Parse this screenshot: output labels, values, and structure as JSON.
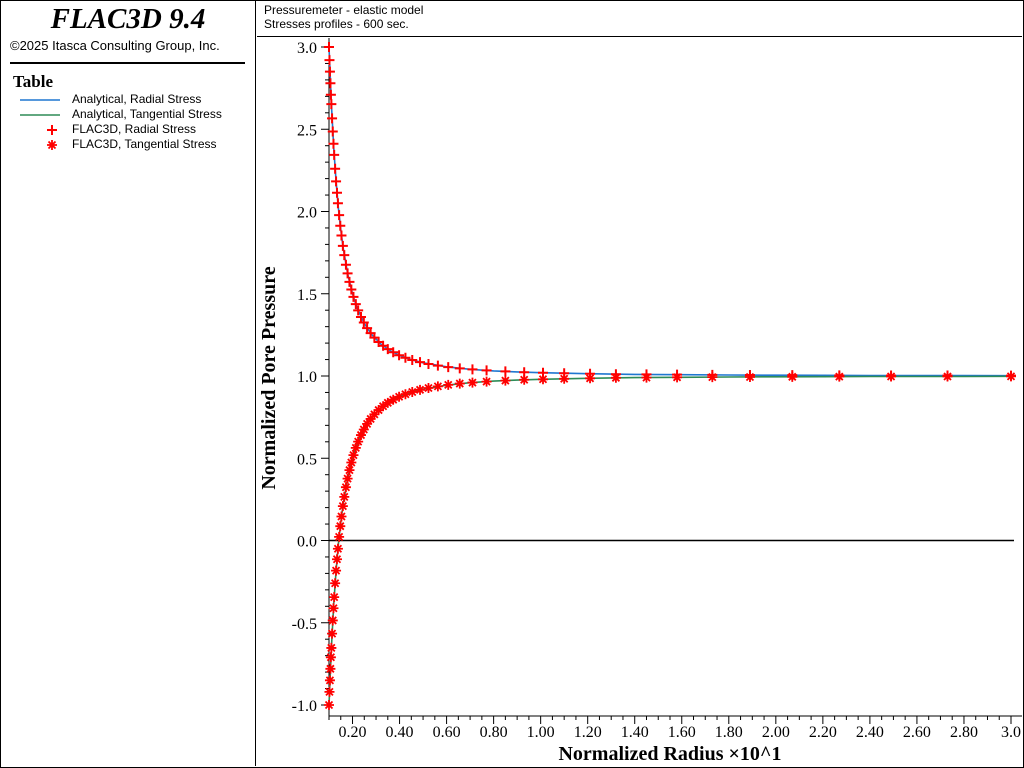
{
  "app": {
    "title": "FLAC3D 9.4",
    "copyright": "©2025 Itasca Consulting Group, Inc."
  },
  "legend": {
    "heading": "Table",
    "items": [
      {
        "label": "Analytical, Radial Stress",
        "marker": "line",
        "color": "#1f77d0"
      },
      {
        "label": "Analytical, Tangential Stress",
        "marker": "line",
        "color": "#2e8b57"
      },
      {
        "label": "FLAC3D, Radial Stress",
        "marker": "plus",
        "color": "#ff0000"
      },
      {
        "label": "FLAC3D, Tangential Stress",
        "marker": "asterisk",
        "color": "#ff0000"
      }
    ]
  },
  "plot_header": {
    "line1": "Pressuremeter - elastic model",
    "line2": "Stresses profiles - 600 sec."
  },
  "chart_data": {
    "type": "line",
    "title": "Pressuremeter - elastic model",
    "subtitle": "Stresses profiles - 600 sec.",
    "xlabel": "Normalized Radius ×10^1",
    "ylabel": "Normalized Pore Pressure",
    "xlim": [
      0.1,
      3.0
    ],
    "ylim": [
      -1.05,
      3.05
    ],
    "x_ticks": [
      0.2,
      0.4,
      0.6,
      0.8,
      1.0,
      1.2,
      1.4,
      1.6,
      1.8,
      2.0,
      2.2,
      2.4,
      2.6,
      2.8,
      3.0
    ],
    "x_tick_labels": [
      "0.20",
      "0.40",
      "0.60",
      "0.80",
      "1.00",
      "1.20",
      "1.40",
      "1.60",
      "1.80",
      "2.00",
      "2.20",
      "2.40",
      "2.60",
      "2.80",
      "3.0"
    ],
    "y_ticks": [
      -1.0,
      -0.5,
      0.0,
      0.5,
      1.0,
      1.5,
      2.0,
      2.5,
      3.0
    ],
    "y_tick_labels": [
      "-1.0",
      "-0.5",
      "0.0",
      "0.5",
      "1.0",
      "1.5",
      "2.0",
      "2.5",
      "3.0"
    ],
    "zero_line": true,
    "grid": false,
    "series": [
      {
        "name": "Analytical, Radial Stress",
        "style": "line",
        "color": "#1f77d0",
        "x": [
          0.1,
          0.11,
          0.12,
          0.13,
          0.14,
          0.15,
          0.16,
          0.18,
          0.2,
          0.22,
          0.25,
          0.28,
          0.32,
          0.36,
          0.4,
          0.45,
          0.5,
          0.6,
          0.7,
          0.8,
          0.9,
          1.0,
          1.2,
          1.4,
          1.6,
          1.8,
          2.0,
          2.2,
          2.4,
          2.6,
          2.8,
          3.0
        ],
        "y": [
          3.0,
          2.653,
          2.389,
          2.183,
          2.02,
          1.889,
          1.781,
          1.617,
          1.5,
          1.413,
          1.32,
          1.255,
          1.195,
          1.154,
          1.125,
          1.099,
          1.08,
          1.056,
          1.041,
          1.031,
          1.025,
          1.02,
          1.014,
          1.01,
          1.008,
          1.006,
          1.005,
          1.004,
          1.003,
          1.003,
          1.003,
          1.002
        ]
      },
      {
        "name": "Analytical, Tangential Stress",
        "style": "line",
        "color": "#2e8b57",
        "x": [
          0.1,
          0.11,
          0.12,
          0.13,
          0.14,
          0.15,
          0.16,
          0.18,
          0.2,
          0.22,
          0.25,
          0.28,
          0.32,
          0.36,
          0.4,
          0.45,
          0.5,
          0.6,
          0.7,
          0.8,
          0.9,
          1.0,
          1.2,
          1.4,
          1.6,
          1.8,
          2.0,
          2.2,
          2.4,
          2.6,
          2.8,
          3.0
        ],
        "y": [
          -1.0,
          -0.653,
          -0.389,
          -0.183,
          -0.02,
          0.111,
          0.219,
          0.383,
          0.5,
          0.587,
          0.68,
          0.745,
          0.805,
          0.846,
          0.875,
          0.901,
          0.92,
          0.944,
          0.959,
          0.969,
          0.975,
          0.98,
          0.986,
          0.99,
          0.992,
          0.994,
          0.995,
          0.996,
          0.997,
          0.997,
          0.997,
          0.998
        ]
      },
      {
        "name": "FLAC3D, Radial Stress",
        "style": "plus",
        "color": "#ff0000",
        "x": [
          0.1,
          0.102,
          0.104,
          0.106,
          0.108,
          0.11,
          0.113,
          0.116,
          0.119,
          0.122,
          0.126,
          0.13,
          0.134,
          0.138,
          0.143,
          0.148,
          0.153,
          0.159,
          0.165,
          0.172,
          0.179,
          0.187,
          0.195,
          0.204,
          0.214,
          0.224,
          0.236,
          0.248,
          0.262,
          0.277,
          0.293,
          0.311,
          0.33,
          0.35,
          0.373,
          0.398,
          0.425,
          0.454,
          0.487,
          0.523,
          0.563,
          0.607,
          0.656,
          0.71,
          0.77,
          0.85,
          0.93,
          1.01,
          1.1,
          1.21,
          1.32,
          1.45,
          1.58,
          1.73,
          1.89,
          2.07,
          2.27,
          2.49,
          2.73,
          3.0
        ],
        "y": [
          3.0,
          2.92,
          2.85,
          2.78,
          2.71,
          2.653,
          2.566,
          2.486,
          2.412,
          2.344,
          2.26,
          2.183,
          2.114,
          2.05,
          1.978,
          1.913,
          1.854,
          1.791,
          1.735,
          1.676,
          1.624,
          1.572,
          1.526,
          1.481,
          1.437,
          1.399,
          1.359,
          1.325,
          1.291,
          1.261,
          1.233,
          1.207,
          1.184,
          1.163,
          1.144,
          1.126,
          1.111,
          1.097,
          1.084,
          1.073,
          1.063,
          1.054,
          1.046,
          1.04,
          1.034,
          1.028,
          1.023,
          1.02,
          1.017,
          1.014,
          1.011,
          1.01,
          1.008,
          1.007,
          1.006,
          1.005,
          1.004,
          1.003,
          1.003,
          1.002
        ]
      },
      {
        "name": "FLAC3D, Tangential Stress",
        "style": "asterisk",
        "color": "#ff0000",
        "x": [
          0.1,
          0.102,
          0.104,
          0.106,
          0.108,
          0.11,
          0.113,
          0.116,
          0.119,
          0.122,
          0.126,
          0.13,
          0.134,
          0.138,
          0.143,
          0.148,
          0.153,
          0.159,
          0.165,
          0.172,
          0.179,
          0.187,
          0.195,
          0.204,
          0.214,
          0.224,
          0.236,
          0.248,
          0.262,
          0.277,
          0.293,
          0.311,
          0.33,
          0.35,
          0.373,
          0.398,
          0.425,
          0.454,
          0.487,
          0.523,
          0.563,
          0.607,
          0.656,
          0.71,
          0.77,
          0.85,
          0.93,
          1.01,
          1.1,
          1.21,
          1.32,
          1.45,
          1.58,
          1.73,
          1.89,
          2.07,
          2.27,
          2.49,
          2.73,
          3.0
        ],
        "y": [
          -1.0,
          -0.92,
          -0.85,
          -0.78,
          -0.71,
          -0.653,
          -0.566,
          -0.486,
          -0.412,
          -0.344,
          -0.26,
          -0.183,
          -0.114,
          -0.05,
          0.022,
          0.087,
          0.146,
          0.209,
          0.265,
          0.324,
          0.376,
          0.428,
          0.474,
          0.519,
          0.563,
          0.601,
          0.641,
          0.675,
          0.709,
          0.739,
          0.767,
          0.793,
          0.816,
          0.837,
          0.856,
          0.874,
          0.889,
          0.903,
          0.916,
          0.927,
          0.937,
          0.946,
          0.954,
          0.96,
          0.966,
          0.972,
          0.977,
          0.98,
          0.983,
          0.986,
          0.989,
          0.99,
          0.992,
          0.993,
          0.994,
          0.995,
          0.996,
          0.997,
          0.997,
          0.998
        ]
      }
    ]
  }
}
